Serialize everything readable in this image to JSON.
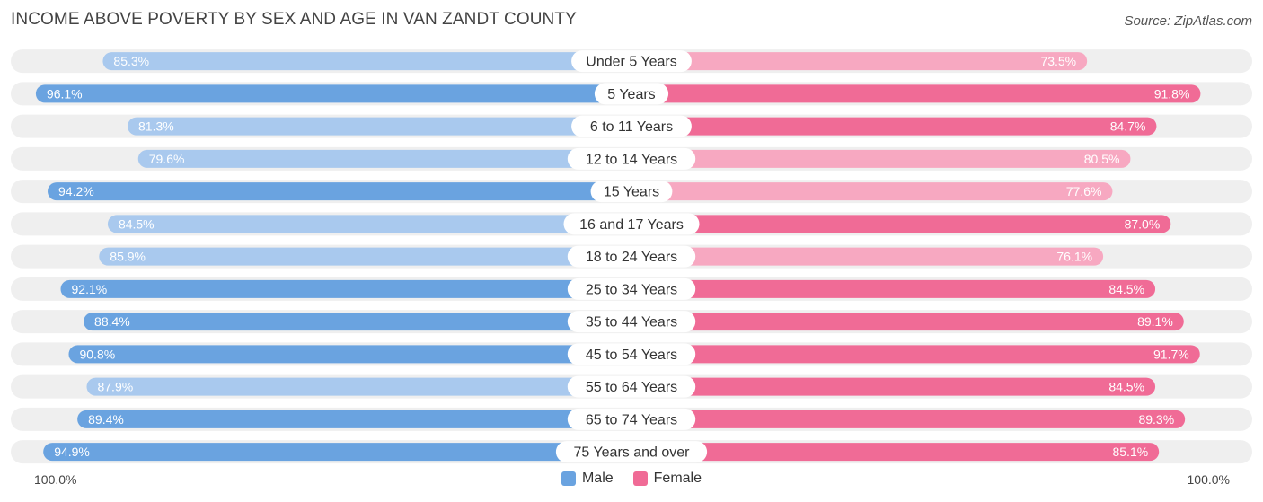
{
  "title": "INCOME ABOVE POVERTY BY SEX AND AGE IN VAN ZANDT COUNTY",
  "source": "Source: ZipAtlas.com",
  "colors": {
    "male_strong": "#6aa3e0",
    "male_light": "#a9c9ee",
    "female_strong": "#f06b96",
    "female_light": "#f7a8c1",
    "track": "#efefef"
  },
  "legend": {
    "male": "Male",
    "female": "Female"
  },
  "axis": {
    "left": "100.0%",
    "right": "100.0%"
  },
  "chart_data": {
    "type": "bar",
    "orientation": "horizontal-diverging",
    "categories": [
      "Under 5 Years",
      "5 Years",
      "6 to 11 Years",
      "12 to 14 Years",
      "15 Years",
      "16 and 17 Years",
      "18 to 24 Years",
      "25 to 34 Years",
      "35 to 44 Years",
      "45 to 54 Years",
      "55 to 64 Years",
      "65 to 74 Years",
      "75 Years and over"
    ],
    "series": [
      {
        "name": "Male",
        "values": [
          85.3,
          96.1,
          81.3,
          79.6,
          94.2,
          84.5,
          85.9,
          92.1,
          88.4,
          90.8,
          87.9,
          89.4,
          94.9
        ]
      },
      {
        "name": "Female",
        "values": [
          73.5,
          91.8,
          84.7,
          80.5,
          77.6,
          87.0,
          76.1,
          84.5,
          89.1,
          91.7,
          84.5,
          89.3,
          85.1
        ]
      }
    ],
    "value_labels": {
      "male": [
        "85.3%",
        "96.1%",
        "81.3%",
        "79.6%",
        "94.2%",
        "84.5%",
        "85.9%",
        "92.1%",
        "88.4%",
        "90.8%",
        "87.9%",
        "89.4%",
        "94.9%"
      ],
      "female": [
        "73.5%",
        "91.8%",
        "84.7%",
        "80.5%",
        "77.6%",
        "87.0%",
        "76.1%",
        "84.5%",
        "89.1%",
        "91.7%",
        "84.5%",
        "89.3%",
        "85.1%"
      ]
    },
    "xlim": [
      0,
      100
    ],
    "legend_position": "bottom-center"
  }
}
